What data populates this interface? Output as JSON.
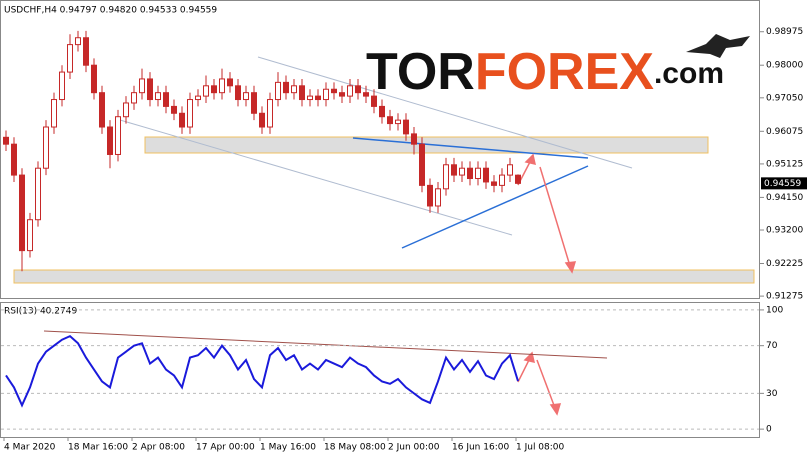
{
  "chart_data": [
    {
      "type": "candlestick",
      "title": "USDCHF,H4  0.94797 0.94820 0.94533 0.94559",
      "logo": [
        "TOR",
        "FOREX",
        ".com"
      ],
      "color": "#c62828",
      "open": [
        0.959,
        0.957,
        0.948,
        0.926,
        0.935,
        0.95,
        0.962,
        0.97,
        0.978,
        0.986,
        0.988,
        0.98,
        0.972,
        0.962,
        0.954,
        0.965,
        0.969,
        0.972,
        0.976,
        0.97,
        0.972,
        0.968,
        0.966,
        0.962,
        0.97,
        0.971,
        0.974,
        0.972,
        0.976,
        0.974,
        0.97,
        0.972,
        0.966,
        0.962,
        0.97,
        0.975,
        0.972,
        0.974,
        0.97,
        0.971,
        0.97,
        0.973,
        0.972,
        0.971,
        0.974,
        0.972,
        0.971,
        0.968,
        0.965,
        0.963,
        0.964,
        0.96,
        0.957,
        0.945,
        0.939,
        0.944,
        0.951,
        0.948,
        0.95,
        0.947,
        0.95,
        0.946,
        0.945,
        0.948,
        0.94797
      ],
      "high": [
        0.961,
        0.959,
        0.95,
        0.937,
        0.952,
        0.964,
        0.972,
        0.98,
        0.989,
        0.99,
        0.99,
        0.982,
        0.974,
        0.964,
        0.967,
        0.971,
        0.974,
        0.979,
        0.978,
        0.974,
        0.974,
        0.97,
        0.968,
        0.972,
        0.973,
        0.977,
        0.976,
        0.979,
        0.978,
        0.976,
        0.974,
        0.974,
        0.968,
        0.972,
        0.978,
        0.977,
        0.976,
        0.976,
        0.973,
        0.973,
        0.975,
        0.975,
        0.974,
        0.976,
        0.976,
        0.974,
        0.973,
        0.97,
        0.967,
        0.966,
        0.966,
        0.962,
        0.959,
        0.947,
        0.946,
        0.953,
        0.953,
        0.952,
        0.952,
        0.952,
        0.952,
        0.948,
        0.95,
        0.953,
        0.9482
      ],
      "low": [
        0.955,
        0.946,
        0.92,
        0.924,
        0.933,
        0.948,
        0.96,
        0.968,
        0.976,
        0.984,
        0.978,
        0.97,
        0.96,
        0.95,
        0.952,
        0.963,
        0.967,
        0.97,
        0.968,
        0.968,
        0.966,
        0.964,
        0.96,
        0.96,
        0.968,
        0.969,
        0.97,
        0.97,
        0.972,
        0.968,
        0.968,
        0.964,
        0.96,
        0.96,
        0.968,
        0.97,
        0.97,
        0.968,
        0.968,
        0.968,
        0.968,
        0.97,
        0.969,
        0.969,
        0.97,
        0.969,
        0.966,
        0.963,
        0.961,
        0.961,
        0.958,
        0.954,
        0.943,
        0.937,
        0.937,
        0.942,
        0.946,
        0.946,
        0.945,
        0.945,
        0.944,
        0.943,
        0.943,
        0.946,
        0.94533
      ],
      "close": [
        0.957,
        0.948,
        0.926,
        0.935,
        0.95,
        0.962,
        0.97,
        0.978,
        0.986,
        0.988,
        0.98,
        0.972,
        0.962,
        0.954,
        0.965,
        0.969,
        0.972,
        0.976,
        0.97,
        0.972,
        0.968,
        0.966,
        0.962,
        0.97,
        0.971,
        0.974,
        0.972,
        0.976,
        0.974,
        0.97,
        0.972,
        0.966,
        0.962,
        0.97,
        0.975,
        0.972,
        0.974,
        0.97,
        0.971,
        0.97,
        0.973,
        0.972,
        0.971,
        0.974,
        0.972,
        0.971,
        0.968,
        0.965,
        0.963,
        0.964,
        0.96,
        0.957,
        0.945,
        0.939,
        0.944,
        0.951,
        0.948,
        0.95,
        0.947,
        0.95,
        0.946,
        0.945,
        0.948,
        0.951,
        0.94559
      ],
      "last_price": 0.94559,
      "ylim": [
        0.9122,
        0.9987
      ],
      "yticks": [
        {
          "value": 0.98975,
          "label": "0.98975"
        },
        {
          "value": 0.98,
          "label": "0.98000"
        },
        {
          "value": 0.9705,
          "label": "0.97050"
        },
        {
          "value": 0.96075,
          "label": "0.96075"
        },
        {
          "value": 0.95125,
          "label": "0.95125"
        },
        {
          "value": 0.9415,
          "label": "0.94150"
        },
        {
          "value": 0.932,
          "label": "0.93200"
        },
        {
          "value": 0.92225,
          "label": "0.92225"
        },
        {
          "value": 0.91275,
          "label": "0.91275"
        }
      ]
    },
    {
      "type": "line",
      "title": "RSI(13) 40.2749",
      "color": "#1a1adb",
      "categories": [
        "4 Mar 2020",
        null,
        null,
        null,
        null,
        null,
        null,
        null,
        "18 Mar 16:00",
        null,
        null,
        null,
        null,
        null,
        null,
        null,
        "2 Apr 08:00",
        null,
        null,
        null,
        null,
        null,
        null,
        null,
        "17 Apr 00:00",
        null,
        null,
        null,
        null,
        null,
        null,
        null,
        "1 May 16:00",
        null,
        null,
        null,
        null,
        null,
        null,
        null,
        "18 May 08:00",
        null,
        null,
        null,
        null,
        null,
        null,
        null,
        "2 Jun 00:00",
        null,
        null,
        null,
        null,
        null,
        null,
        null,
        "16 Jun 16:00",
        null,
        null,
        null,
        null,
        null,
        null,
        null,
        "1 Jul 08:00"
      ],
      "values": [
        45,
        35,
        20,
        35,
        55,
        65,
        70,
        75,
        78,
        72,
        60,
        50,
        40,
        35,
        60,
        65,
        70,
        72,
        55,
        60,
        50,
        45,
        35,
        60,
        62,
        68,
        60,
        70,
        62,
        50,
        58,
        42,
        35,
        62,
        68,
        58,
        62,
        50,
        55,
        50,
        58,
        55,
        52,
        60,
        55,
        52,
        45,
        40,
        38,
        42,
        35,
        30,
        25,
        22,
        40,
        60,
        50,
        58,
        48,
        57,
        45,
        42,
        55,
        62,
        40.2749
      ],
      "ylim": [
        -6.6,
        105.8
      ],
      "yticks": [
        100,
        70,
        30,
        0
      ]
    }
  ]
}
